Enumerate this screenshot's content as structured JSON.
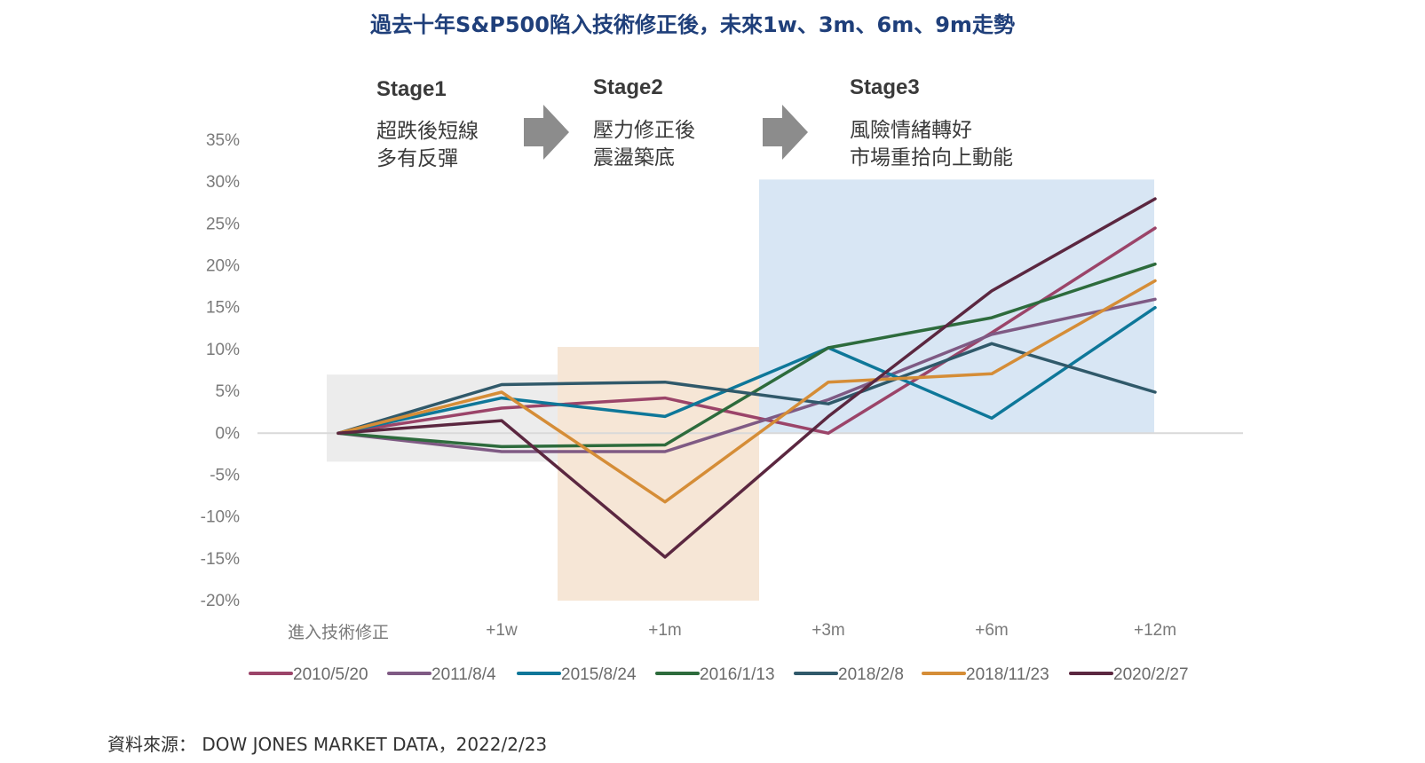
{
  "title": "過去十年S&P500陷入技術修正後，未來1w、3m、6m、9m走勢",
  "source": "資料來源： DOW JONES MARKET DATA，2022/2/23",
  "stages": [
    {
      "title": "Stage1",
      "lines": [
        "超跌後短線",
        "多有反彈"
      ],
      "color": "#ececec"
    },
    {
      "title": "Stage2",
      "lines": [
        "壓力修正後",
        "震盪築底"
      ],
      "color": "#f6e6d6"
    },
    {
      "title": "Stage3",
      "lines": [
        "風險情緒轉好",
        "市場重拾向上動能"
      ],
      "color": "#d8e6f4"
    }
  ],
  "colors": {
    "arrow": "#8c8c8c",
    "zero_line": "#d9d9d9",
    "title": "#1f3f7a"
  },
  "chart_data": {
    "type": "line",
    "categories": [
      "進入技術修正",
      "+1w",
      "+1m",
      "+3m",
      "+6m",
      "+12m"
    ],
    "ylim": [
      -20,
      35
    ],
    "yticks": [
      35,
      30,
      25,
      20,
      15,
      10,
      5,
      0,
      -5,
      -10,
      -15,
      -20
    ],
    "ytick_labels": [
      "35%",
      "30%",
      "25%",
      "20%",
      "15%",
      "10%",
      "5%",
      "0%",
      "-5%",
      "-10%",
      "-15%",
      "-20%"
    ],
    "grid": false,
    "legend_position": "bottom",
    "series": [
      {
        "name": "2010/5/20",
        "color": "#9b4469",
        "values": [
          0,
          3.0,
          4.2,
          0.0,
          12.0,
          24.5
        ]
      },
      {
        "name": "2011/8/4",
        "color": "#7f5a84",
        "values": [
          0,
          -2.2,
          -2.2,
          4.0,
          11.8,
          16.0
        ]
      },
      {
        "name": "2015/8/24",
        "color": "#0e7799",
        "values": [
          0,
          4.2,
          2.0,
          10.2,
          1.8,
          15.0
        ]
      },
      {
        "name": "2016/1/13",
        "color": "#2d6b3c",
        "values": [
          0,
          -1.6,
          -1.4,
          10.2,
          13.8,
          20.2
        ]
      },
      {
        "name": "2018/2/8",
        "color": "#30596a",
        "values": [
          0,
          5.8,
          6.1,
          3.5,
          10.7,
          4.9
        ]
      },
      {
        "name": "2018/11/23",
        "color": "#d58d37",
        "values": [
          0,
          4.9,
          -8.2,
          6.1,
          7.1,
          18.2
        ]
      },
      {
        "name": "2020/2/27",
        "color": "#5b2740",
        "values": [
          0,
          1.5,
          -14.8,
          2.0,
          17.0,
          28.0
        ]
      }
    ]
  }
}
